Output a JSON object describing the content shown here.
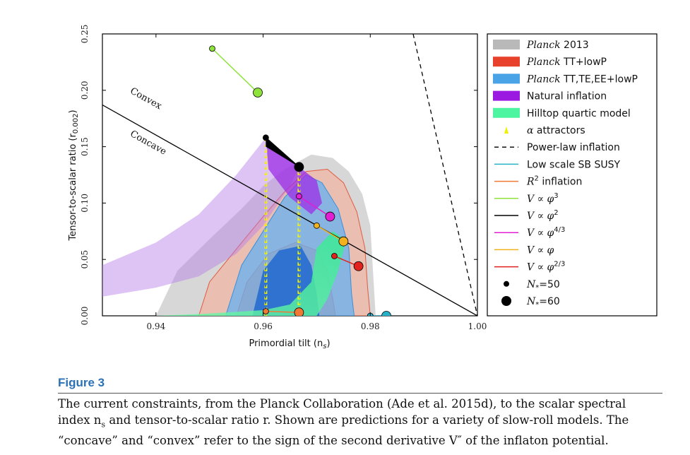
{
  "chart_data": {
    "type": "scatter",
    "xlabel": "Primordial tilt (n",
    "xlabel_sub": "s",
    "xlabel_end": ")",
    "ylabel": "Tensor-to-scalar ratio (r",
    "ylabel_sub": "0.002",
    "ylabel_end": ")",
    "xlim": [
      0.93,
      1.0
    ],
    "ylim": [
      0.0,
      0.25
    ],
    "xticks": [
      "0.94",
      "0.96",
      "0.98",
      "1.00"
    ],
    "xtick_values": [
      0.94,
      0.96,
      0.98,
      1.0
    ],
    "yticks": [
      "0.00",
      "0.05",
      "0.10",
      "0.15",
      "0.20",
      "0.25"
    ],
    "ytick_values": [
      0.0,
      0.05,
      0.1,
      0.15,
      0.2,
      0.25
    ],
    "annotations": [
      {
        "text": "Convex",
        "x": 0.9335,
        "y": 0.198,
        "angle_data_line": "convex"
      },
      {
        "text": "Concave",
        "x": 0.9335,
        "y": 0.16,
        "angle_data_line": "concave"
      }
    ],
    "legend_position": "right-outside",
    "legend": [
      {
        "label_italic": "Planck",
        "label": " 2013",
        "kind": "patch",
        "color": "#b9b9b9"
      },
      {
        "label_italic": "Planck",
        "label": " TT+lowP",
        "kind": "patch",
        "color": "#e8412c"
      },
      {
        "label_italic": "Planck",
        "label": " TT,TE,EE+lowP",
        "kind": "patch",
        "color": "#4aa3e6"
      },
      {
        "label_italic": "",
        "label": "Natural inflation",
        "kind": "patch",
        "color": "#9b19e0"
      },
      {
        "label_italic": "",
        "label": "Hilltop quartic model",
        "kind": "patch",
        "color": "#4df5a0"
      },
      {
        "label_italic": "α",
        "label": " attractors",
        "kind": "triangle",
        "color": "#f0f000"
      },
      {
        "label_italic": "",
        "label": "Power-law inflation",
        "kind": "dashed",
        "color": "#111111"
      },
      {
        "label_italic": "",
        "label": "Low scale SB SUSY",
        "kind": "line",
        "color": "#27b1c9"
      },
      {
        "label_italic": "R",
        "label_sup": "2",
        "label": " inflation",
        "kind": "line",
        "color": "#f07a35"
      },
      {
        "label_italic": "V ∝ φ",
        "label_sup": "3",
        "label": "",
        "kind": "line",
        "color": "#8ee23a"
      },
      {
        "label_italic": "V ∝ φ",
        "label_sup": "2",
        "label": "",
        "kind": "line",
        "color": "#000000"
      },
      {
        "label_italic": "V ∝ φ",
        "label_sup": "4/3",
        "label": "",
        "kind": "line",
        "color": "#e21fd2"
      },
      {
        "label_italic": "V ∝ φ",
        "label_sup": "",
        "label": "",
        "kind": "line",
        "color": "#f2b21e"
      },
      {
        "label_italic": "V ∝ φ",
        "label_sup": "2/3",
        "label": "",
        "kind": "line",
        "color": "#e2231d"
      },
      {
        "label_italic": "N",
        "label_sub": "*",
        "label": "=50",
        "kind": "dot-small",
        "color": "#000000"
      },
      {
        "label_italic": "N",
        "label_sub": "*",
        "label": "=60",
        "kind": "dot-large",
        "color": "#000000"
      }
    ],
    "series": [
      {
        "name": "V ∝ φ^3",
        "color": "#8ee23a",
        "x": [
          0.9505,
          0.959
        ],
        "y": [
          0.237,
          0.198
        ]
      },
      {
        "name": "V ∝ φ^4/3",
        "color": "#e21fd2",
        "x": [
          0.9667,
          0.9725
        ],
        "y": [
          0.106,
          0.088
        ]
      },
      {
        "name": "V ∝ φ",
        "color": "#f2b21e",
        "x": [
          0.97,
          0.975
        ],
        "y": [
          0.08,
          0.066
        ]
      },
      {
        "name": "V ∝ φ^2/3",
        "color": "#e2231d",
        "x": [
          0.9733,
          0.9778
        ],
        "y": [
          0.053,
          0.044
        ]
      },
      {
        "name": "R^2 inflation",
        "color": "#f07a35",
        "x": [
          0.9605,
          0.9667
        ],
        "y": [
          0.004,
          0.003
        ]
      },
      {
        "name": "Low scale SB SUSY",
        "color": "#27b1c9",
        "x": [
          0.98,
          0.983
        ],
        "y": [
          0.0,
          0.0
        ]
      },
      {
        "name": "V ∝ φ^2",
        "color": "#000000",
        "x": [
          0.9605,
          0.9667
        ],
        "y": [
          0.158,
          0.132
        ]
      }
    ],
    "reference_lines": {
      "convex_concave": {
        "x": [
          0.93,
          1.0
        ],
        "y": [
          0.187,
          0.0
        ]
      },
      "power_law": {
        "x": [
          0.988,
          1.0
        ],
        "y": [
          0.25,
          0.0
        ]
      }
    }
  },
  "caption": {
    "title": "Figure 3",
    "line1": "The current constraints, from the Planck Collaboration (Ade et al. 2015d), to the scalar spectral",
    "line2": "index n",
    "line2_sub": "s",
    "line2_end": " and tensor-to-scalar ratio r. Shown are predictions for a variety of slow-roll models. The",
    "line3": "“concave” and “convex” refer to the sign of the second derivative V″ of the inflaton potential."
  }
}
